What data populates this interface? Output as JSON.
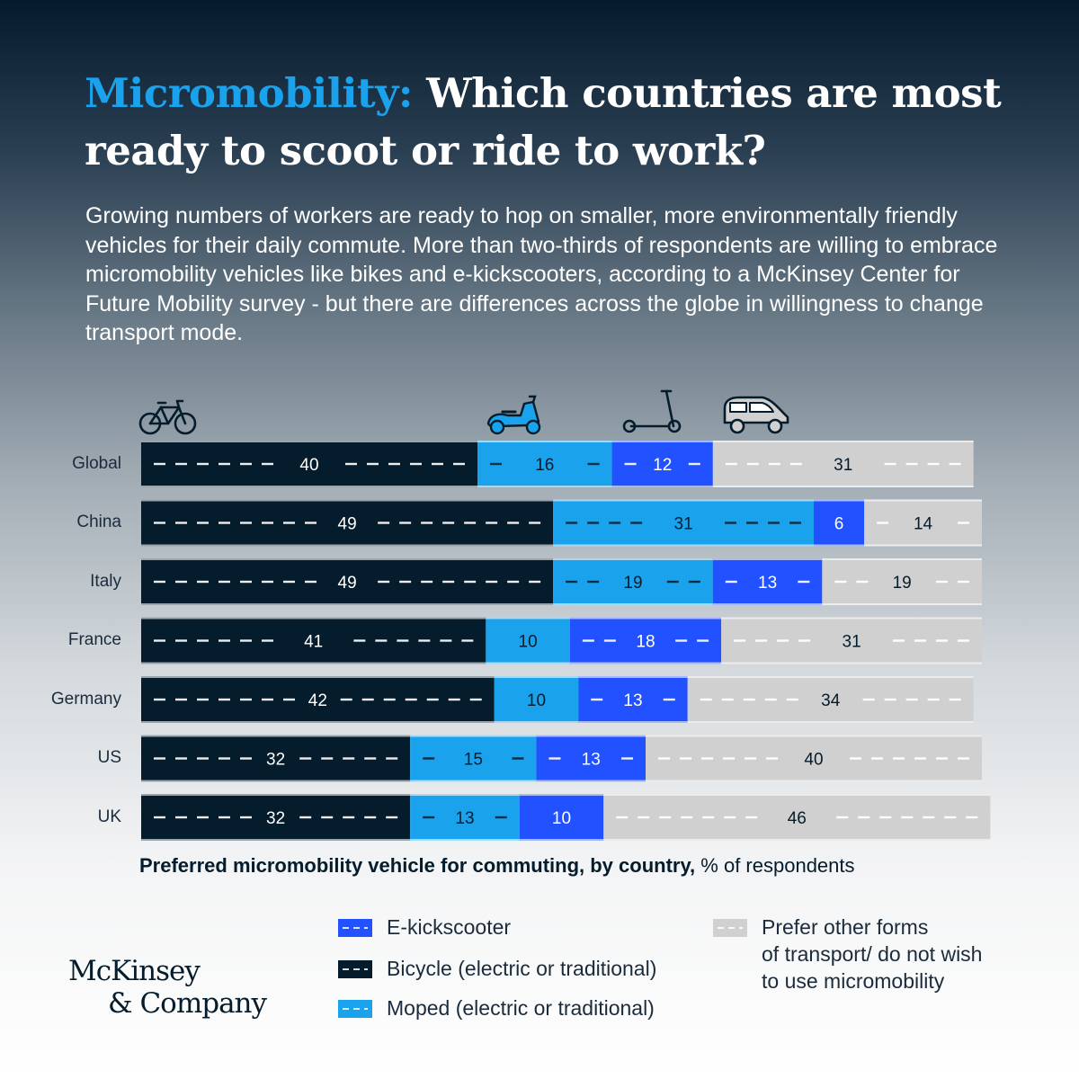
{
  "title_accent": "Micromobility:",
  "title_rest": "Which countries are most ready to scoot or ride to work?",
  "subtitle": "Growing numbers of workers are ready to hop on smaller, more environmentally friendly vehicles for their daily commute. More than two-thirds of respondents are willing to embrace micromobility vehicles like bikes and e-kickscooters, according to a McKinsey Center for Future Mobility survey - but there are differences across the globe in willingness to change transport mode.",
  "icons": [
    "bicycle-icon",
    "moped-icon",
    "kickscooter-icon",
    "car-icon"
  ],
  "colors": {
    "bicycle": "#051c2c",
    "moped": "#1aa3ec",
    "ekickscooter": "#2251ff",
    "other": "#d0d0d0",
    "title_accent": "#1aa3ec"
  },
  "chart_data": {
    "type": "bar",
    "orientation": "horizontal",
    "stacked": true,
    "unit": "% of respondents",
    "categories": [
      "Global",
      "China",
      "Italy",
      "France",
      "Germany",
      "US",
      "UK"
    ],
    "series": [
      {
        "key": "bicycle",
        "name": "Bicycle (electric or traditional)",
        "values": [
          40,
          49,
          49,
          41,
          42,
          32,
          32
        ]
      },
      {
        "key": "moped",
        "name": "Moped (electric or traditional)",
        "values": [
          16,
          31,
          19,
          10,
          10,
          15,
          13
        ]
      },
      {
        "key": "ekickscooter",
        "name": "E-kickscooter",
        "values": [
          12,
          6,
          13,
          18,
          13,
          13,
          10
        ]
      },
      {
        "key": "other",
        "name": "Prefer other forms of transport/ do not wish to use micromobility",
        "values": [
          31,
          14,
          19,
          31,
          34,
          40,
          46
        ]
      }
    ],
    "xlabel_bold": "Preferred micromobility vehicle for commuting, by country,",
    "xlabel_rest": "% of respondents"
  },
  "legend": {
    "ekickscooter": "E-kickscooter",
    "bicycle": "Bicycle (electric or traditional)",
    "moped": "Moped (electric or traditional)",
    "other_lines": [
      "Prefer other forms",
      "of transport/ do not wish",
      "to use micromobility"
    ]
  },
  "logo": {
    "line1": "McKinsey",
    "line2": "& Company"
  }
}
